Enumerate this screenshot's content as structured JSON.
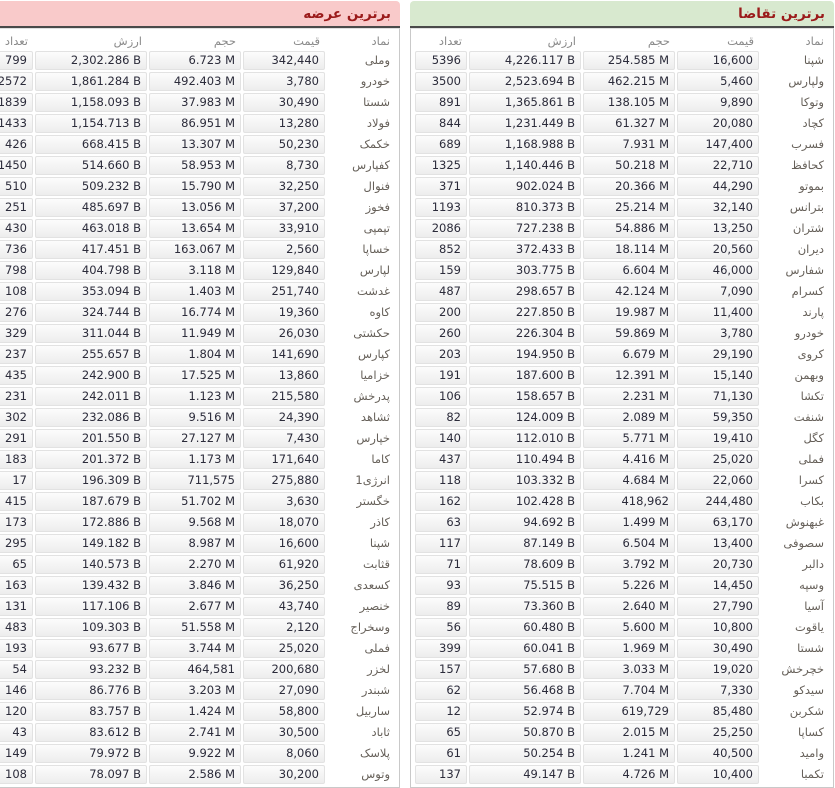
{
  "colors": {
    "demand_header_bg": "#d8e9cf",
    "supply_header_bg": "#f9caca",
    "title_text": "#9b1b1b",
    "header_underline": "#4a4a4a"
  },
  "columns": [
    "نماد",
    "قیمت",
    "حجم",
    "ارزش",
    "تعداد"
  ],
  "demand": {
    "title": "برترین تقاضا",
    "rows": [
      [
        "شپنا",
        "16,600",
        "254.585 M",
        "4,226.117 B",
        "5396"
      ],
      [
        "ولپارس",
        "5,460",
        "462.215 M",
        "2,523.694 B",
        "3500"
      ],
      [
        "وتوکا",
        "9,890",
        "138.105 M",
        "1,365.861 B",
        "891"
      ],
      [
        "کچاد",
        "20,080",
        "61.327 M",
        "1,231.449 B",
        "844"
      ],
      [
        "فسرب",
        "147,400",
        "7.931 M",
        "1,168.988 B",
        "689"
      ],
      [
        "کحافظ",
        "22,710",
        "50.218 M",
        "1,140.446 B",
        "1325"
      ],
      [
        "بموتو",
        "44,290",
        "20.366 M",
        "902.024 B",
        "371"
      ],
      [
        "بترانس",
        "32,140",
        "25.214 M",
        "810.373 B",
        "1193"
      ],
      [
        "شتران",
        "13,250",
        "54.886 M",
        "727.238 B",
        "2086"
      ],
      [
        "دیران",
        "20,560",
        "18.114 M",
        "372.433 B",
        "852"
      ],
      [
        "شفارس",
        "46,000",
        "6.604 M",
        "303.775 B",
        "159"
      ],
      [
        "کسرام",
        "7,090",
        "42.124 M",
        "298.657 B",
        "487"
      ],
      [
        "پارند",
        "11,400",
        "19.987 M",
        "227.850 B",
        "200"
      ],
      [
        "خودرو",
        "3,780",
        "59.869 M",
        "226.304 B",
        "260"
      ],
      [
        "کروی",
        "29,190",
        "6.679 M",
        "194.950 B",
        "203"
      ],
      [
        "وبهمن",
        "15,140",
        "12.391 M",
        "187.600 B",
        "191"
      ],
      [
        "تکشا",
        "71,130",
        "2.231 M",
        "158.657 B",
        "106"
      ],
      [
        "شنفت",
        "59,350",
        "2.089 M",
        "124.009 B",
        "82"
      ],
      [
        "کگل",
        "19,410",
        "5.771 M",
        "112.010 B",
        "140"
      ],
      [
        "فملی",
        "25,020",
        "4.416 M",
        "110.494 B",
        "437"
      ],
      [
        "کسرا",
        "22,060",
        "4.684 M",
        "103.332 B",
        "118"
      ],
      [
        "بکاب",
        "244,480",
        "418,962",
        "102.428 B",
        "162"
      ],
      [
        "غبهنوش",
        "63,170",
        "1.499 M",
        "94.692 B",
        "63"
      ],
      [
        "سصوفی",
        "13,400",
        "6.504 M",
        "87.149 B",
        "117"
      ],
      [
        "دالبر",
        "20,730",
        "3.792 M",
        "78.609 B",
        "71"
      ],
      [
        "وسپه",
        "14,450",
        "5.226 M",
        "75.515 B",
        "93"
      ],
      [
        "آسیا",
        "27,790",
        "2.640 M",
        "73.360 B",
        "89"
      ],
      [
        "یاقوت",
        "10,800",
        "5.600 M",
        "60.480 B",
        "56"
      ],
      [
        "شستا",
        "30,490",
        "1.969 M",
        "60.041 B",
        "399"
      ],
      [
        "خچرخش",
        "19,020",
        "3.033 M",
        "57.680 B",
        "157"
      ],
      [
        "سیدکو",
        "7,330",
        "7.704 M",
        "56.468 B",
        "62"
      ],
      [
        "شکربن",
        "85,480",
        "619,729",
        "52.974 B",
        "12"
      ],
      [
        "کساپا",
        "25,250",
        "2.015 M",
        "50.870 B",
        "65"
      ],
      [
        "وامید",
        "40,500",
        "1.241 M",
        "50.254 B",
        "61"
      ],
      [
        "تکمبا",
        "10,400",
        "4.726 M",
        "49.147 B",
        "137"
      ]
    ]
  },
  "supply": {
    "title": "برترین عرضه",
    "rows": [
      [
        "وملی",
        "342,440",
        "6.723 M",
        "2,302.286 B",
        "799"
      ],
      [
        "خودرو",
        "3,780",
        "492.403 M",
        "1,861.284 B",
        "2572"
      ],
      [
        "شستا",
        "30,490",
        "37.983 M",
        "1,158.093 B",
        "1839"
      ],
      [
        "فولاد",
        "13,280",
        "86.951 M",
        "1,154.713 B",
        "1433"
      ],
      [
        "خکمک",
        "50,230",
        "13.307 M",
        "668.415 B",
        "426"
      ],
      [
        "کفپارس",
        "8,730",
        "58.953 M",
        "514.660 B",
        "1450"
      ],
      [
        "فنوال",
        "32,250",
        "15.790 M",
        "509.232 B",
        "510"
      ],
      [
        "فخوز",
        "37,200",
        "13.056 M",
        "485.697 B",
        "251"
      ],
      [
        "تپمپی",
        "33,910",
        "13.654 M",
        "463.018 B",
        "430"
      ],
      [
        "خساپا",
        "2,560",
        "163.067 M",
        "417.451 B",
        "736"
      ],
      [
        "لپارس",
        "129,840",
        "3.118 M",
        "404.798 B",
        "798"
      ],
      [
        "غدشت",
        "251,740",
        "1.403 M",
        "353.094 B",
        "108"
      ],
      [
        "کاوه",
        "19,360",
        "16.774 M",
        "324.744 B",
        "276"
      ],
      [
        "حکشتی",
        "26,030",
        "11.949 M",
        "311.044 B",
        "329"
      ],
      [
        "کپارس",
        "141,690",
        "1.804 M",
        "255.657 B",
        "237"
      ],
      [
        "خزامیا",
        "13,860",
        "17.525 M",
        "242.900 B",
        "435"
      ],
      [
        "پدرخش",
        "215,580",
        "1.123 M",
        "242.011 B",
        "231"
      ],
      [
        "ثشاهد",
        "24,390",
        "9.516 M",
        "232.086 B",
        "302"
      ],
      [
        "خپارس",
        "7,430",
        "27.127 M",
        "201.550 B",
        "291"
      ],
      [
        "کاما",
        "171,640",
        "1.173 M",
        "201.372 B",
        "183"
      ],
      [
        "انرژی1",
        "275,880",
        "711,575",
        "196.309 B",
        "17"
      ],
      [
        "خگستر",
        "3,630",
        "51.702 M",
        "187.679 B",
        "415"
      ],
      [
        "کاذر",
        "18,070",
        "9.568 M",
        "172.886 B",
        "173"
      ],
      [
        "شپنا",
        "16,600",
        "8.987 M",
        "149.182 B",
        "295"
      ],
      [
        "قثابت",
        "61,920",
        "2.270 M",
        "140.573 B",
        "65"
      ],
      [
        "کسعدی",
        "36,250",
        "3.846 M",
        "139.432 B",
        "163"
      ],
      [
        "خنصیر",
        "43,740",
        "2.677 M",
        "117.106 B",
        "131"
      ],
      [
        "وسخراج",
        "2,120",
        "51.558 M",
        "109.303 B",
        "483"
      ],
      [
        "فملی",
        "25,020",
        "3.744 M",
        "93.677 B",
        "193"
      ],
      [
        "لخزر",
        "200,680",
        "464,581",
        "93.232 B",
        "54"
      ],
      [
        "شبندر",
        "27,090",
        "3.203 M",
        "86.776 B",
        "146"
      ],
      [
        "ساربیل",
        "58,800",
        "1.424 M",
        "83.757 B",
        "120"
      ],
      [
        "ثاباد",
        "30,500",
        "2.741 M",
        "83.612 B",
        "43"
      ],
      [
        "پلاسک",
        "8,060",
        "9.922 M",
        "79.972 B",
        "149"
      ],
      [
        "وتوس",
        "30,200",
        "2.586 M",
        "78.097 B",
        "108"
      ]
    ]
  }
}
